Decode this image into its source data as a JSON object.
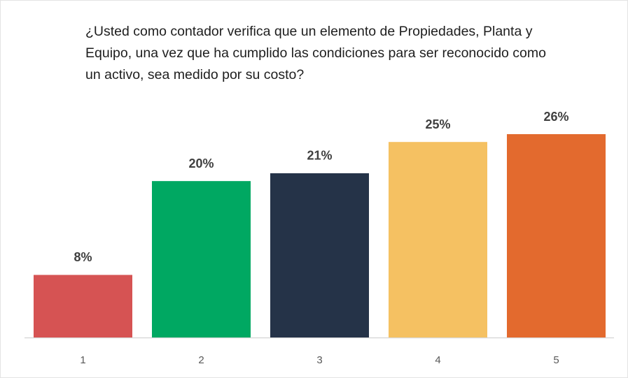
{
  "chart_data": {
    "type": "bar",
    "title": "¿Usted como contador verifica que un elemento de Propiedades, Planta y Equipo, una vez que ha cumplido las condiciones para ser reconocido como un activo, sea medido por su costo?",
    "categories": [
      "1",
      "2",
      "3",
      "4",
      "5"
    ],
    "values": [
      8,
      20,
      21,
      25,
      26
    ],
    "value_labels": [
      "8%",
      "20%",
      "21%",
      "25%",
      "26%"
    ],
    "colors": [
      "#d65353",
      "#00a862",
      "#253348",
      "#f5c162",
      "#e36a2e"
    ]
  }
}
